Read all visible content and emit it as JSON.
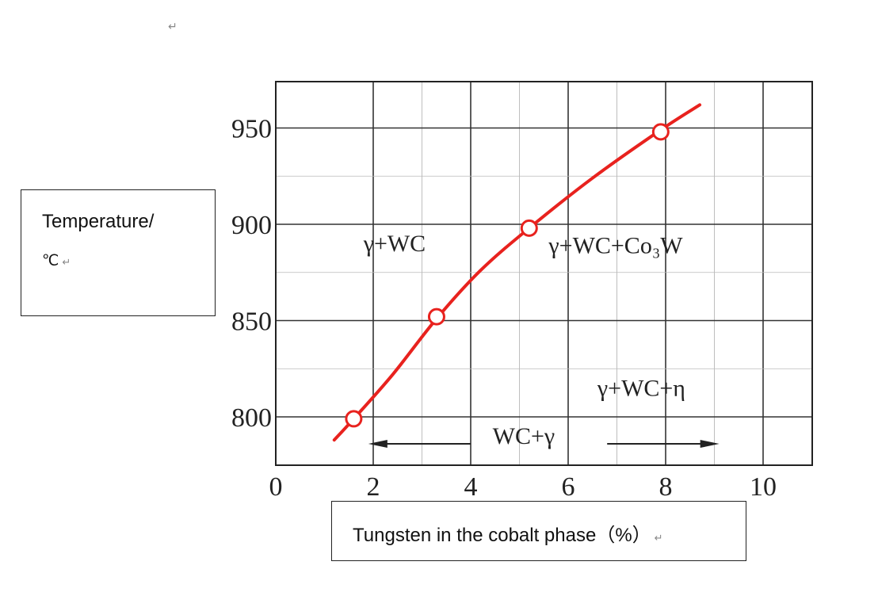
{
  "page": {
    "paragraph_mark": "↵"
  },
  "chart_data": {
    "type": "line",
    "title": "",
    "xlabel": "Tungsten in the cobalt phase（%）",
    "ylabel_line1": "Temperature/",
    "ylabel_line2": "℃",
    "xlim": [
      0,
      10.5
    ],
    "ylim": [
      775,
      973
    ],
    "x_ticks": [
      {
        "value": 0,
        "label": "0"
      },
      {
        "value": 2,
        "label": "2"
      },
      {
        "value": 4,
        "label": "4"
      },
      {
        "value": 6,
        "label": "6"
      },
      {
        "value": 8,
        "label": "8"
      },
      {
        "value": 10,
        "label": "10"
      }
    ],
    "y_ticks": [
      {
        "value": 800,
        "label": "800"
      },
      {
        "value": 850,
        "label": "850"
      },
      {
        "value": 900,
        "label": "900"
      },
      {
        "value": 950,
        "label": "950"
      }
    ],
    "grid": true,
    "series": [
      {
        "color": "#e8221e",
        "curve": [
          {
            "x": 1.2,
            "y": 788
          },
          {
            "x": 1.6,
            "y": 799
          },
          {
            "x": 2.4,
            "y": 822
          },
          {
            "x": 3.3,
            "y": 851
          },
          {
            "x": 4.2,
            "y": 876
          },
          {
            "x": 5.2,
            "y": 898
          },
          {
            "x": 6.5,
            "y": 924
          },
          {
            "x": 7.9,
            "y": 949
          },
          {
            "x": 8.7,
            "y": 962
          }
        ],
        "points": [
          {
            "x": 1.6,
            "y": 799
          },
          {
            "x": 3.3,
            "y": 852
          },
          {
            "x": 5.2,
            "y": 898
          },
          {
            "x": 7.9,
            "y": 948
          }
        ]
      }
    ],
    "annotations": [
      {
        "text": "γ+WC",
        "x": 1.8,
        "y": 886
      },
      {
        "text": "γ+WC+Co₃W",
        "x": 5.6,
        "y": 885
      },
      {
        "text": "γ+WC+η",
        "x": 6.6,
        "y": 811
      },
      {
        "text": "WC+γ",
        "x": 4.45,
        "y": 786
      }
    ],
    "arrow": {
      "y": 786,
      "left_from": 4.0,
      "left_to": 1.9,
      "right_from": 6.8,
      "right_to": 9.1
    }
  }
}
